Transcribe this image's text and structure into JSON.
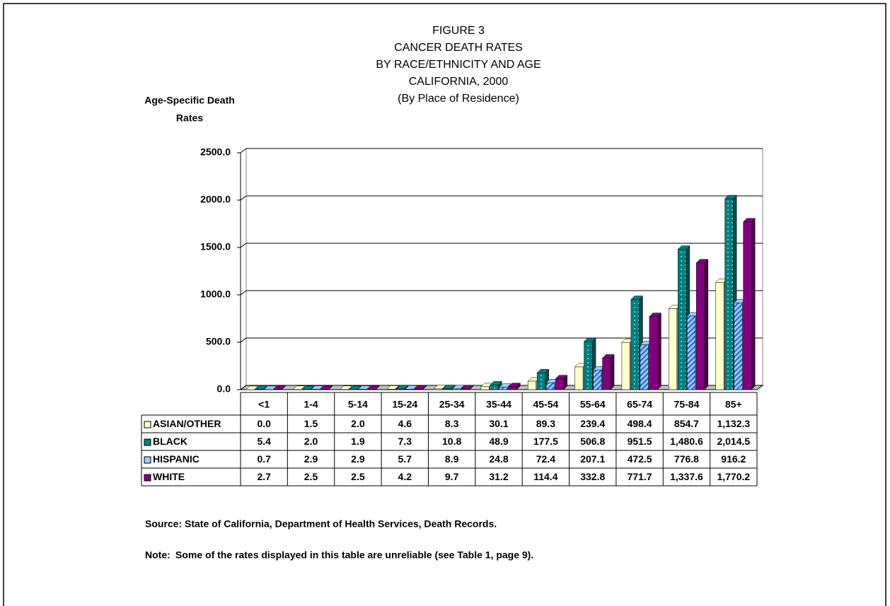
{
  "chart_data": {
    "type": "bar",
    "title": [
      "FIGURE 3",
      "CANCER DEATH RATES",
      "BY RACE/ETHNICITY AND AGE",
      "CALIFORNIA, 2000",
      "(By Place of Residence)"
    ],
    "ylabel": [
      "Age-Specific Death",
      "Rates"
    ],
    "categories": [
      "<1",
      "1-4",
      "5-14",
      "15-24",
      "25-34",
      "35-44",
      "45-54",
      "55-64",
      "65-74",
      "75-84",
      "85+"
    ],
    "series": [
      {
        "name": "ASIAN/OTHER",
        "color": "#ffffcc",
        "values": [
          0.0,
          1.5,
          2.0,
          4.6,
          8.3,
          30.1,
          89.3,
          239.4,
          498.4,
          854.7,
          1132.3
        ],
        "value_labels": [
          "0.0",
          "1.5",
          "2.0",
          "4.6",
          "8.3",
          "30.1",
          "89.3",
          "239.4",
          "498.4",
          "854.7",
          "1,132.3"
        ]
      },
      {
        "name": "BLACK",
        "color": "#008080",
        "values": [
          5.4,
          2.0,
          1.9,
          7.3,
          10.8,
          48.9,
          177.5,
          506.8,
          951.5,
          1480.6,
          2014.5
        ],
        "value_labels": [
          "5.4",
          "2.0",
          "1.9",
          "7.3",
          "10.8",
          "48.9",
          "177.5",
          "506.8",
          "951.5",
          "1,480.6",
          "2,014.5"
        ]
      },
      {
        "name": "HISPANIC",
        "color": "#99ccff",
        "values": [
          0.7,
          2.9,
          2.9,
          5.7,
          8.9,
          24.8,
          72.4,
          207.1,
          472.5,
          776.8,
          916.2
        ],
        "value_labels": [
          "0.7",
          "2.9",
          "2.9",
          "5.7",
          "8.9",
          "24.8",
          "72.4",
          "207.1",
          "472.5",
          "776.8",
          "916.2"
        ]
      },
      {
        "name": "WHITE",
        "color": "#800080",
        "values": [
          2.7,
          2.5,
          2.5,
          4.2,
          9.7,
          31.2,
          114.4,
          332.8,
          771.7,
          1337.6,
          1770.2
        ],
        "value_labels": [
          "2.7",
          "2.5",
          "2.5",
          "4.2",
          "9.7",
          "31.2",
          "114.4",
          "332.8",
          "771.7",
          "1,337.6",
          "1,770.2"
        ]
      }
    ],
    "ylim": [
      0,
      2500
    ],
    "yticks": [
      {
        "value": 0,
        "label": "0.0"
      },
      {
        "value": 500,
        "label": "500.0"
      },
      {
        "value": 1000,
        "label": "1000.0"
      },
      {
        "value": 1500,
        "label": "1500.0"
      },
      {
        "value": 2000,
        "label": "2000.0"
      },
      {
        "value": 2500,
        "label": "2500.0"
      }
    ],
    "grid": true,
    "source": "Source: State of California, Department of Health Services, Death Records.",
    "note": {
      "label": "Note:",
      "text": "Some of the rates displayed in this table are unreliable (see Table 1, page 9)."
    }
  }
}
